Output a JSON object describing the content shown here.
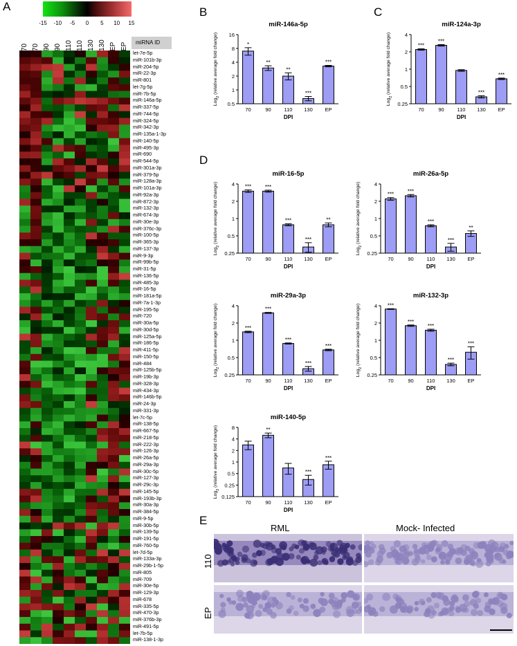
{
  "panels": {
    "A": "A",
    "B": "B",
    "C": "C",
    "D": "D",
    "E": "E"
  },
  "heatmap": {
    "colorbar_ticks": [
      "-15",
      "-10",
      "-5",
      "0",
      "5",
      "10",
      "15"
    ],
    "columns": [
      "70",
      "70",
      "90",
      "90",
      "110",
      "110",
      "130",
      "130",
      "EP",
      "EP"
    ],
    "mirna_id_header": "miRNA ID",
    "rows": [
      "let-7e-5p",
      "miR-101b-3p",
      "miR-204-5p",
      "miR-22-3p",
      "miR-801",
      "let-7g-5p",
      "miR-7b-5p",
      "miR-146a-5p",
      "miR-337-5p",
      "miR-744-5p",
      "miR-324-5p",
      "miR-342-3p",
      "miR-135a-1-3p",
      "miR-140-5p",
      "miR-495-3p",
      "miR-690",
      "miR-544-5p",
      "miR-301a-3p",
      "miR-379-5p",
      "miR-128a-3p",
      "miR-101a-3p",
      "miR-92a-3p",
      "miR-872-3p",
      "miR-132-3p",
      "miR-674-3p",
      "miR-30e-3p",
      "miR-376c-3p",
      "miR-100-5p",
      "miR-365-3p",
      "miR-137-3p",
      "miR-9-3p",
      "miR-99b-5p",
      "miR-31-5p",
      "miR-136-5p",
      "miR-485-3p",
      "miR-16-5p",
      "miR-181a-5p",
      "miR-7a-1-3p",
      "miR-195-5p",
      "miR-720",
      "miR-30a-5p",
      "miR-30d-5p",
      "miR-125a-5p",
      "miR-186-5p",
      "miR-411-5p",
      "miR-150-5p",
      "miR-484",
      "miR-125b-5p",
      "miR-19b-3p",
      "miR-328-3p",
      "miR-434-3p",
      "miR-146b-5p",
      "miR-24-3p",
      "miR-331-3p",
      "let-7c-5p",
      "miR-138-5p",
      "miR-667-5p",
      "miR-218-5p",
      "miR-222-3p",
      "miR-126-3p",
      "miR-26a-5p",
      "miR-29a-3p",
      "miR-30c-5p",
      "miR-127-3p",
      "miR-29c-3p",
      "miR-145-5p",
      "miR-193b-3p",
      "miR-30a-3p",
      "miR-384-5p",
      "miR-9-5p",
      "miR-30b-5p",
      "miR-139-5p",
      "miR-191-5p",
      "miR-760-5p",
      "let-7d-5p",
      "miR-133a-3p",
      "miR-29b-1-5p",
      "miR-805",
      "miR-709",
      "miR-30e-5p",
      "miR-129-3p",
      "miR-678",
      "miR-335-5p",
      "miR-470-3p",
      "miR-376b-3p",
      "miR-491-5p",
      "let-7b-5p",
      "miR-138-1-3p"
    ]
  },
  "bar_color": "#9d9df5",
  "chart_data": [
    {
      "id": "146a",
      "type": "bar",
      "title": "miR-146a-5p",
      "xlabel": "DPI",
      "ylabel": "Log2 (relative average fold change)",
      "log_base": 2,
      "ylim": [
        0.5,
        16
      ],
      "yticks": [
        "0.5",
        "1",
        "2",
        "4",
        "8",
        "16"
      ],
      "categories": [
        "70",
        "90",
        "110",
        "130",
        "EP"
      ],
      "values": [
        7.0,
        3.0,
        2.0,
        0.65,
        3.3
      ],
      "errors": [
        1.3,
        0.35,
        0.35,
        0.07,
        0.12
      ],
      "significance": [
        "*",
        "**",
        "**",
        "***",
        "***"
      ]
    },
    {
      "id": "124a",
      "type": "bar",
      "title": "miR-124a-3p",
      "xlabel": "DPI",
      "ylabel": "Log2 (relative average fold change)",
      "log_base": 2,
      "ylim": [
        0.25,
        4
      ],
      "yticks": [
        "0.25",
        "0.5",
        "1",
        "2",
        "4"
      ],
      "categories": [
        "70",
        "90",
        "110",
        "130",
        "EP"
      ],
      "values": [
        2.2,
        2.6,
        0.95,
        0.33,
        0.68
      ],
      "errors": [
        0.06,
        0.08,
        0.03,
        0.015,
        0.02
      ],
      "significance": [
        "***",
        "***",
        "",
        "***",
        "***"
      ]
    },
    {
      "id": "16",
      "type": "bar",
      "title": "miR-16-5p",
      "xlabel": "DPI",
      "ylabel": "Log2 (relative average fold change)",
      "log_base": 2,
      "ylim": [
        0.25,
        4
      ],
      "yticks": [
        "0.25",
        "0.5",
        "1",
        "2",
        "4"
      ],
      "categories": [
        "70",
        "90",
        "110",
        "130",
        "EP"
      ],
      "values": [
        3.0,
        3.0,
        0.78,
        0.32,
        0.78
      ],
      "errors": [
        0.15,
        0.12,
        0.03,
        0.06,
        0.06
      ],
      "significance": [
        "***",
        "***",
        "***",
        "***",
        "**"
      ]
    },
    {
      "id": "26a",
      "type": "bar",
      "title": "miR-26a-5p",
      "xlabel": "DPI",
      "ylabel": "Log2 (relative average fold change)",
      "log_base": 2,
      "ylim": [
        0.25,
        4
      ],
      "yticks": [
        "0.25",
        "0.5",
        "1",
        "2",
        "4"
      ],
      "categories": [
        "70",
        "90",
        "110",
        "130",
        "EP"
      ],
      "values": [
        2.2,
        2.5,
        0.75,
        0.32,
        0.55
      ],
      "errors": [
        0.12,
        0.12,
        0.03,
        0.05,
        0.06
      ],
      "significance": [
        "***",
        "***",
        "***",
        "***",
        "**"
      ]
    },
    {
      "id": "29a",
      "type": "bar",
      "title": "miR-29a-3p",
      "xlabel": "DPI",
      "ylabel": "Log2 (relative average fold change)",
      "log_base": 2,
      "ylim": [
        0.25,
        4
      ],
      "yticks": [
        "0.25",
        "0.5",
        "1",
        "2",
        "4"
      ],
      "categories": [
        "70",
        "90",
        "110",
        "130",
        "EP"
      ],
      "values": [
        1.4,
        3.0,
        0.88,
        0.32,
        0.68
      ],
      "errors": [
        0.04,
        0.06,
        0.02,
        0.03,
        0.02
      ],
      "significance": [
        "***",
        "***",
        "***",
        "***",
        "***"
      ]
    },
    {
      "id": "132",
      "type": "bar",
      "title": "miR-132-3p",
      "xlabel": "DPI",
      "ylabel": "Log2 (relative average fold change)",
      "log_base": 2,
      "ylim": [
        0.25,
        4
      ],
      "yticks": [
        "0.25",
        "0.5",
        "1",
        "2",
        "4"
      ],
      "categories": [
        "70",
        "90",
        "110",
        "130",
        "EP"
      ],
      "values": [
        3.5,
        1.8,
        1.5,
        0.38,
        0.62
      ],
      "errors": [
        0.05,
        0.05,
        0.06,
        0.02,
        0.15
      ],
      "significance": [
        "***",
        "***",
        "***",
        "***",
        "***"
      ]
    },
    {
      "id": "140",
      "type": "bar",
      "title": "miR-140-5p",
      "xlabel": "DPI",
      "ylabel": "Log2 (relative average fold change)",
      "log_base": 2,
      "ylim": [
        0.125,
        8
      ],
      "yticks": [
        "0.125",
        "0.25",
        "0.5",
        "1",
        "2",
        "4",
        "8"
      ],
      "categories": [
        "70",
        "90",
        "110",
        "130",
        "EP"
      ],
      "values": [
        2.8,
        5.0,
        0.7,
        0.35,
        0.85
      ],
      "errors": [
        0.7,
        0.7,
        0.22,
        0.1,
        0.2
      ],
      "significance": [
        "",
        "**",
        "",
        "***",
        "***"
      ]
    }
  ],
  "ihc": {
    "col1": "RML",
    "col2": "Mock- Infected",
    "row1": "110",
    "row2": "EP"
  }
}
